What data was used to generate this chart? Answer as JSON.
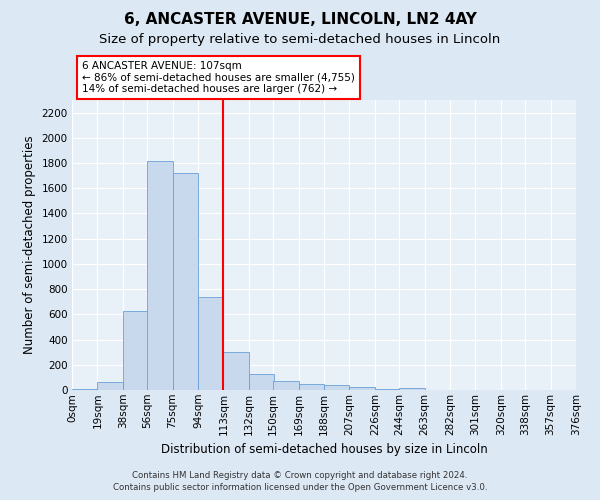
{
  "title": "6, ANCASTER AVENUE, LINCOLN, LN2 4AY",
  "subtitle": "Size of property relative to semi-detached houses in Lincoln",
  "xlabel": "Distribution of semi-detached houses by size in Lincoln",
  "ylabel": "Number of semi-detached properties",
  "bins": [
    0,
    19,
    38,
    56,
    75,
    94,
    113,
    132,
    150,
    169,
    188,
    207,
    226,
    244,
    263,
    282,
    301,
    320,
    338,
    357,
    376
  ],
  "bin_labels": [
    "0sqm",
    "19sqm",
    "38sqm",
    "56sqm",
    "75sqm",
    "94sqm",
    "113sqm",
    "132sqm",
    "150sqm",
    "169sqm",
    "188sqm",
    "207sqm",
    "226sqm",
    "244sqm",
    "263sqm",
    "282sqm",
    "301sqm",
    "320sqm",
    "338sqm",
    "357sqm",
    "376sqm"
  ],
  "values": [
    10,
    60,
    630,
    1820,
    1720,
    740,
    300,
    130,
    70,
    50,
    40,
    20,
    5,
    15,
    0,
    0,
    0,
    0,
    0,
    0,
    0
  ],
  "bar_color": "#c8d8ed",
  "bar_edge_color": "#6a9fd8",
  "red_line_x": 113,
  "ylim": [
    0,
    2300
  ],
  "yticks": [
    0,
    200,
    400,
    600,
    800,
    1000,
    1200,
    1400,
    1600,
    1800,
    2000,
    2200
  ],
  "annotation_text": "6 ANCASTER AVENUE: 107sqm\n← 86% of semi-detached houses are smaller (4,755)\n14% of semi-detached houses are larger (762) →",
  "bg_color": "#dde8f5",
  "plot_bg_color": "#e8f0f8",
  "grid_color": "#c8d8ed",
  "title_fontsize": 11,
  "subtitle_fontsize": 9.5,
  "axis_label_fontsize": 8.5,
  "tick_fontsize": 7.5,
  "footer_line1": "Contains HM Land Registry data © Crown copyright and database right 2024.",
  "footer_line2": "Contains public sector information licensed under the Open Government Licence v3.0."
}
